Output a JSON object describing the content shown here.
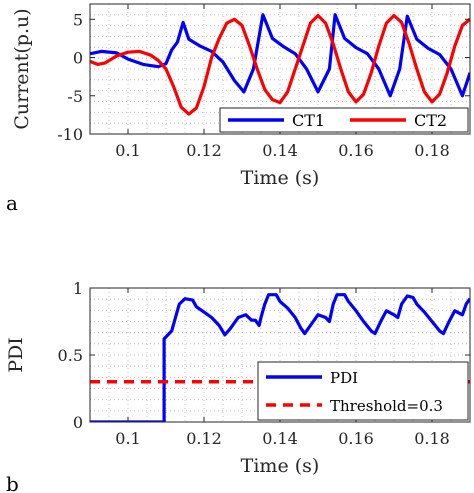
{
  "panel_a_label": "a",
  "panel_b_label": "b",
  "chart_data": [
    {
      "type": "line",
      "xlabel": "Time (s)",
      "ylabel": "Current(p.u)",
      "xlim": [
        0.09,
        0.19
      ],
      "ylim": [
        -10,
        7
      ],
      "xticks": [
        "0.1",
        "0.12",
        "0.14",
        "0.16",
        "0.18"
      ],
      "yticks": [
        "5",
        "0",
        "-5",
        "-10"
      ],
      "grid": true,
      "legend_position": "bottom-right",
      "series": [
        {
          "name": "CT1",
          "color": "#0000ff",
          "points": [
            [
              0.09,
              0.5
            ],
            [
              0.093,
              0.8
            ],
            [
              0.097,
              0.6
            ],
            [
              0.1,
              -0.2
            ],
            [
              0.104,
              -0.9
            ],
            [
              0.108,
              -1.2
            ],
            [
              0.11,
              -0.8
            ],
            [
              0.1115,
              1.0
            ],
            [
              0.113,
              2.0
            ],
            [
              0.1145,
              4.6
            ],
            [
              0.116,
              2.4
            ],
            [
              0.119,
              1.5
            ],
            [
              0.122,
              0.8
            ],
            [
              0.125,
              -0.6
            ],
            [
              0.128,
              -3.0
            ],
            [
              0.1305,
              -4.5
            ],
            [
              0.133,
              -1.5
            ],
            [
              0.1355,
              5.6
            ],
            [
              0.138,
              2.5
            ],
            [
              0.141,
              1.4
            ],
            [
              0.144,
              0.5
            ],
            [
              0.147,
              -1.5
            ],
            [
              0.15,
              -4.5
            ],
            [
              0.153,
              -1.5
            ],
            [
              0.1545,
              5.6
            ],
            [
              0.157,
              2.5
            ],
            [
              0.16,
              1.3
            ],
            [
              0.163,
              0.5
            ],
            [
              0.166,
              -1.5
            ],
            [
              0.169,
              -5.0
            ],
            [
              0.1715,
              -1.5
            ],
            [
              0.1735,
              5.4
            ],
            [
              0.176,
              2.4
            ],
            [
              0.179,
              1.2
            ],
            [
              0.182,
              0.4
            ],
            [
              0.185,
              -1.5
            ],
            [
              0.188,
              -5.0
            ],
            [
              0.19,
              -2.0
            ]
          ]
        },
        {
          "name": "CT2",
          "color": "#ff0000",
          "points": [
            [
              0.09,
              -0.5
            ],
            [
              0.092,
              -0.9
            ],
            [
              0.094,
              -0.7
            ],
            [
              0.097,
              0.2
            ],
            [
              0.1,
              0.7
            ],
            [
              0.103,
              0.8
            ],
            [
              0.106,
              0.3
            ],
            [
              0.108,
              -0.4
            ],
            [
              0.11,
              -1.5
            ],
            [
              0.112,
              -3.8
            ],
            [
              0.114,
              -6.5
            ],
            [
              0.116,
              -7.4
            ],
            [
              0.118,
              -6.6
            ],
            [
              0.12,
              -3.8
            ],
            [
              0.122,
              0.0
            ],
            [
              0.124,
              2.5
            ],
            [
              0.126,
              4.5
            ],
            [
              0.128,
              5.0
            ],
            [
              0.13,
              4.2
            ],
            [
              0.132,
              1.5
            ],
            [
              0.134,
              -1.5
            ],
            [
              0.136,
              -4.2
            ],
            [
              0.138,
              -5.5
            ],
            [
              0.14,
              -5.9
            ],
            [
              0.142,
              -4.5
            ],
            [
              0.144,
              -1.5
            ],
            [
              0.146,
              1.5
            ],
            [
              0.148,
              4.5
            ],
            [
              0.15,
              5.5
            ],
            [
              0.152,
              4.5
            ],
            [
              0.154,
              1.8
            ],
            [
              0.156,
              -1.5
            ],
            [
              0.158,
              -4.5
            ],
            [
              0.16,
              -5.8
            ],
            [
              0.162,
              -4.8
            ],
            [
              0.164,
              -2.0
            ],
            [
              0.166,
              1.5
            ],
            [
              0.168,
              4.5
            ],
            [
              0.17,
              5.5
            ],
            [
              0.172,
              4.6
            ],
            [
              0.174,
              1.8
            ],
            [
              0.176,
              -1.5
            ],
            [
              0.178,
              -4.5
            ],
            [
              0.18,
              -5.8
            ],
            [
              0.182,
              -4.8
            ],
            [
              0.184,
              -2.0
            ],
            [
              0.186,
              1.5
            ],
            [
              0.188,
              4.2
            ],
            [
              0.19,
              5.0
            ]
          ]
        }
      ]
    },
    {
      "type": "line",
      "xlabel": "Time (s)",
      "ylabel": "PDI",
      "xlim": [
        0.09,
        0.19
      ],
      "ylim": [
        0,
        1
      ],
      "xticks": [
        "0.1",
        "0.12",
        "0.14",
        "0.16",
        "0.18"
      ],
      "yticks": [
        "1",
        "0.5",
        "0"
      ],
      "grid": true,
      "legend_position": "bottom-right",
      "series": [
        {
          "name": "PDI",
          "color": "#0000ff",
          "points": [
            [
              0.09,
              0.0
            ],
            [
              0.1095,
              0.0
            ],
            [
              0.1095,
              0.62
            ],
            [
              0.1115,
              0.68
            ],
            [
              0.1125,
              0.78
            ],
            [
              0.1135,
              0.88
            ],
            [
              0.115,
              0.92
            ],
            [
              0.117,
              0.91
            ],
            [
              0.118,
              0.86
            ],
            [
              0.12,
              0.82
            ],
            [
              0.122,
              0.78
            ],
            [
              0.124,
              0.72
            ],
            [
              0.1255,
              0.65
            ],
            [
              0.127,
              0.7
            ],
            [
              0.129,
              0.78
            ],
            [
              0.131,
              0.8
            ],
            [
              0.1325,
              0.76
            ],
            [
              0.1335,
              0.76
            ],
            [
              0.1345,
              0.72
            ],
            [
              0.135,
              0.78
            ],
            [
              0.136,
              0.88
            ],
            [
              0.137,
              0.95
            ],
            [
              0.139,
              0.95
            ],
            [
              0.14,
              0.9
            ],
            [
              0.142,
              0.85
            ],
            [
              0.144,
              0.78
            ],
            [
              0.1455,
              0.7
            ],
            [
              0.1465,
              0.66
            ],
            [
              0.148,
              0.72
            ],
            [
              0.15,
              0.8
            ],
            [
              0.152,
              0.78
            ],
            [
              0.153,
              0.75
            ],
            [
              0.154,
              0.88
            ],
            [
              0.155,
              0.95
            ],
            [
              0.157,
              0.95
            ],
            [
              0.158,
              0.9
            ],
            [
              0.16,
              0.83
            ],
            [
              0.162,
              0.75
            ],
            [
              0.164,
              0.68
            ],
            [
              0.165,
              0.66
            ],
            [
              0.1665,
              0.75
            ],
            [
              0.168,
              0.83
            ],
            [
              0.17,
              0.8
            ],
            [
              0.171,
              0.78
            ],
            [
              0.172,
              0.88
            ],
            [
              0.1735,
              0.94
            ],
            [
              0.175,
              0.93
            ],
            [
              0.176,
              0.88
            ],
            [
              0.178,
              0.82
            ],
            [
              0.18,
              0.75
            ],
            [
              0.182,
              0.68
            ],
            [
              0.183,
              0.66
            ],
            [
              0.1845,
              0.75
            ],
            [
              0.186,
              0.83
            ],
            [
              0.188,
              0.8
            ],
            [
              0.189,
              0.88
            ],
            [
              0.19,
              0.92
            ]
          ]
        },
        {
          "name": "Threshold=0.3",
          "color": "#ff0000",
          "dashed": true,
          "points": [
            [
              0.09,
              0.3
            ],
            [
              0.19,
              0.3
            ]
          ]
        }
      ]
    }
  ]
}
